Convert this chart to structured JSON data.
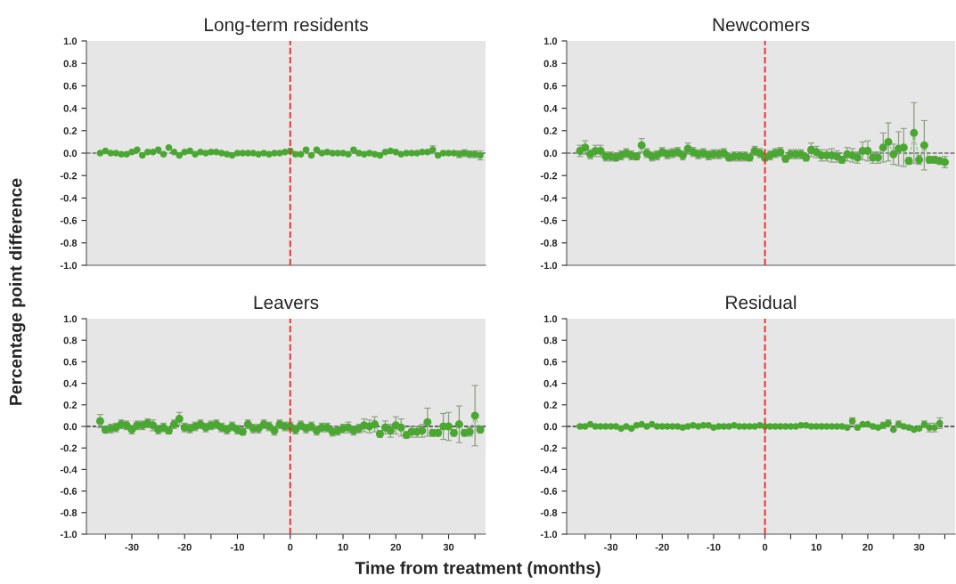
{
  "chart_data": [
    {
      "type": "scatter",
      "title": "Long-term residents",
      "ylabel": "Percentage point difference",
      "tick_labels": "y",
      "marker": "circle",
      "grid": false,
      "legend": false,
      "x": [
        -36,
        -35,
        -34,
        -33,
        -32,
        -31,
        -30,
        -29,
        -28,
        -27,
        -26,
        -25,
        -24,
        -23,
        -22,
        -21,
        -20,
        -19,
        -18,
        -17,
        -16,
        -15,
        -14,
        -13,
        -12,
        -11,
        -10,
        -9,
        -8,
        -7,
        -6,
        -5,
        -4,
        -3,
        -2,
        -1,
        0,
        1,
        2,
        3,
        4,
        5,
        6,
        7,
        8,
        9,
        10,
        11,
        12,
        13,
        14,
        15,
        16,
        17,
        18,
        19,
        20,
        21,
        22,
        23,
        24,
        25,
        26,
        27,
        28,
        29,
        30,
        31,
        32,
        33,
        34,
        35,
        36
      ],
      "xlim": [
        -38.6,
        37
      ],
      "ylim": [
        -1.0,
        1.0
      ],
      "yticks": [
        {
          "value": -1,
          "label": "-1.0"
        },
        {
          "value": -0.8,
          "label": "-0.8"
        },
        {
          "value": -0.6,
          "label": "-0.6"
        },
        {
          "value": -0.4,
          "label": "-0.4"
        },
        {
          "value": -0.2,
          "label": "-0.2"
        },
        {
          "value": 0,
          "label": "0.0"
        },
        {
          "value": 0.2,
          "label": "0.2"
        },
        {
          "value": 0.4,
          "label": "0.4"
        },
        {
          "value": 0.6,
          "label": "0.6"
        },
        {
          "value": 0.8,
          "label": "0.8"
        },
        {
          "value": 1,
          "label": "1.0"
        }
      ],
      "ref_lines": [
        {
          "axis": "x",
          "value": 0,
          "color": "#e8322e",
          "line_style": "dashed"
        },
        {
          "axis": "y",
          "value": 0,
          "color": "#333333",
          "line_style": "dashed"
        }
      ],
      "series": [
        {
          "color": "#4aa832",
          "values": [
            0.0,
            0.02,
            0.0,
            0.0,
            -0.01,
            -0.01,
            0.01,
            0.03,
            -0.02,
            0.01,
            0.01,
            0.03,
            -0.01,
            0.05,
            0.01,
            -0.02,
            0.01,
            0.02,
            -0.01,
            0.01,
            0.0,
            0.01,
            0.01,
            0.0,
            -0.01,
            -0.02,
            0.0,
            0.0,
            0.0,
            0.0,
            -0.01,
            0.0,
            -0.01,
            0.0,
            0.0,
            0.01,
            0.02,
            -0.01,
            -0.01,
            0.03,
            -0.02,
            0.03,
            0.0,
            0.01,
            0.0,
            0.0,
            0.0,
            -0.01,
            0.03,
            0.0,
            -0.01,
            0.0,
            -0.01,
            -0.02,
            0.01,
            0.02,
            0.01,
            -0.01,
            0.0,
            0.0,
            0.0,
            0.01,
            0.01,
            0.03,
            -0.02,
            0.0,
            0.0,
            0.0,
            -0.01,
            0.0,
            -0.01,
            -0.01,
            -0.02
          ],
          "errors": [
            null,
            null,
            null,
            null,
            null,
            null,
            null,
            null,
            null,
            null,
            null,
            null,
            null,
            null,
            null,
            null,
            null,
            null,
            null,
            null,
            null,
            null,
            null,
            null,
            null,
            null,
            null,
            null,
            null,
            null,
            null,
            null,
            null,
            null,
            null,
            null,
            null,
            null,
            null,
            null,
            null,
            null,
            null,
            null,
            null,
            null,
            null,
            null,
            null,
            null,
            null,
            null,
            null,
            null,
            null,
            null,
            null,
            null,
            null,
            null,
            null,
            null,
            null,
            0.035,
            null,
            null,
            null,
            null,
            0.03,
            0.03,
            0.03,
            0.03,
            0.04
          ]
        }
      ]
    },
    {
      "type": "line",
      "title": "Newcomers",
      "tick_labels": "y",
      "marker": "circle",
      "line_style": "dashed",
      "grid": false,
      "legend": false,
      "x": [
        -36,
        -35,
        -34,
        -33,
        -32,
        -31,
        -30,
        -29,
        -28,
        -27,
        -26,
        -25,
        -24,
        -23,
        -22,
        -21,
        -20,
        -19,
        -18,
        -17,
        -16,
        -15,
        -14,
        -13,
        -12,
        -11,
        -10,
        -9,
        -8,
        -7,
        -6,
        -5,
        -4,
        -3,
        -2,
        -1,
        0,
        1,
        2,
        3,
        4,
        5,
        6,
        7,
        8,
        9,
        10,
        11,
        12,
        13,
        14,
        15,
        16,
        17,
        18,
        19,
        20,
        21,
        22,
        23,
        24,
        25,
        26,
        27,
        28,
        29,
        30,
        31,
        32,
        33,
        34,
        35
      ],
      "xlim": [
        -38.6,
        37
      ],
      "ylim": [
        -1.0,
        1.0
      ],
      "yticks": [
        {
          "value": -1,
          "label": "-1.0"
        },
        {
          "value": -0.8,
          "label": "-0.8"
        },
        {
          "value": -0.6,
          "label": "-0.6"
        },
        {
          "value": -0.4,
          "label": "-0.4"
        },
        {
          "value": -0.2,
          "label": "-0.2"
        },
        {
          "value": 0,
          "label": "0.0"
        },
        {
          "value": 0.2,
          "label": "0.2"
        },
        {
          "value": 0.4,
          "label": "0.4"
        },
        {
          "value": 0.6,
          "label": "0.6"
        },
        {
          "value": 0.8,
          "label": "0.8"
        },
        {
          "value": 1,
          "label": "1.0"
        }
      ],
      "ref_lines": [
        {
          "axis": "x",
          "value": 0,
          "color": "#e8322e",
          "line_style": "dashed"
        },
        {
          "axis": "y",
          "value": 0,
          "color": "#333333",
          "line_style": "dashed"
        }
      ],
      "series": [
        {
          "color": "#4aa832",
          "values": [
            0.02,
            0.05,
            -0.01,
            0.02,
            0.02,
            -0.03,
            -0.03,
            -0.04,
            -0.02,
            0.0,
            -0.02,
            -0.03,
            0.07,
            0.0,
            -0.03,
            -0.02,
            0.01,
            -0.01,
            0.0,
            0.01,
            -0.02,
            0.04,
            0.01,
            -0.01,
            0.0,
            -0.02,
            -0.01,
            -0.01,
            0.0,
            -0.04,
            -0.03,
            -0.03,
            -0.03,
            -0.04,
            0.02,
            0.0,
            -0.04,
            -0.02,
            0.0,
            0.01,
            -0.05,
            -0.01,
            -0.01,
            -0.01,
            -0.04,
            0.03,
            0.01,
            -0.02,
            -0.02,
            -0.02,
            -0.03,
            -0.06,
            -0.01,
            -0.02,
            -0.04,
            0.02,
            0.02,
            -0.04,
            -0.04,
            0.05,
            0.1,
            -0.01,
            0.04,
            0.05,
            -0.07,
            0.18,
            -0.06,
            0.07,
            -0.06,
            -0.06,
            -0.07,
            -0.08
          ],
          "errors": [
            0.05,
            0.06,
            0.04,
            0.05,
            0.05,
            0.04,
            0.04,
            0.03,
            0.04,
            0.04,
            0.04,
            0.03,
            0.06,
            0.04,
            0.04,
            0.04,
            0.04,
            0.04,
            0.04,
            0.04,
            0.04,
            0.05,
            0.04,
            0.04,
            0.04,
            0.04,
            0.04,
            0.04,
            0.04,
            0.03,
            0.04,
            0.04,
            0.04,
            0.03,
            0.04,
            0.04,
            0.03,
            0.04,
            0.04,
            0.04,
            0.03,
            0.04,
            0.04,
            0.04,
            0.03,
            0.06,
            0.05,
            0.05,
            0.05,
            0.06,
            0.05,
            0.03,
            0.06,
            0.06,
            0.05,
            0.08,
            0.09,
            0.05,
            0.05,
            0.13,
            0.17,
            0.09,
            0.15,
            0.17,
            0.03,
            0.27,
            0.04,
            0.22,
            0.03,
            0.03,
            0.03,
            0.05
          ]
        }
      ]
    },
    {
      "type": "line",
      "title": "Leavers",
      "xlabel": "Time from treatment (months)",
      "marker": "circle",
      "line_style": "dashed",
      "grid": false,
      "legend": false,
      "x": [
        -36,
        -35,
        -34,
        -33,
        -32,
        -31,
        -30,
        -29,
        -28,
        -27,
        -26,
        -25,
        -24,
        -23,
        -22,
        -21,
        -20,
        -19,
        -18,
        -17,
        -16,
        -15,
        -14,
        -13,
        -12,
        -11,
        -10,
        -9,
        -8,
        -7,
        -6,
        -5,
        -4,
        -3,
        -2,
        -1,
        0,
        1,
        2,
        3,
        4,
        5,
        6,
        7,
        8,
        9,
        10,
        11,
        12,
        13,
        14,
        15,
        16,
        17,
        18,
        19,
        20,
        21,
        22,
        23,
        24,
        25,
        26,
        27,
        28,
        29,
        30,
        31,
        32,
        33,
        34,
        35,
        36
      ],
      "xlim": [
        -38.6,
        37
      ],
      "xticks": [
        {
          "value": -35,
          "label": null
        },
        -30,
        {
          "value": -25,
          "label": null
        },
        -20,
        {
          "value": -15,
          "label": null
        },
        -10,
        {
          "value": -5,
          "label": null
        },
        0,
        {
          "value": 5,
          "label": null
        },
        10,
        {
          "value": 15,
          "label": null
        },
        20,
        {
          "value": 25,
          "label": null
        },
        30,
        {
          "value": 35,
          "label": null
        }
      ],
      "ylim": [
        -1.0,
        1.0
      ],
      "yticks": [
        {
          "value": -1,
          "label": "-1.0"
        },
        {
          "value": -0.8,
          "label": "-0.8"
        },
        {
          "value": -0.6,
          "label": "-0.6"
        },
        {
          "value": -0.4,
          "label": "-0.4"
        },
        {
          "value": -0.2,
          "label": "-0.2"
        },
        {
          "value": 0,
          "label": "0.0"
        },
        {
          "value": 0.2,
          "label": "0.2"
        },
        {
          "value": 0.4,
          "label": "0.4"
        },
        {
          "value": 0.6,
          "label": "0.6"
        },
        {
          "value": 0.8,
          "label": "0.8"
        },
        {
          "value": 1,
          "label": "1.0"
        }
      ],
      "ref_lines": [
        {
          "axis": "x",
          "value": 0,
          "color": "#e8322e",
          "line_style": "dashed"
        },
        {
          "axis": "y",
          "value": 0,
          "color": "#333333",
          "line_style": "dashed"
        }
      ],
      "series": [
        {
          "color": "#4aa832",
          "values": [
            0.05,
            -0.03,
            -0.02,
            -0.01,
            0.02,
            0.01,
            -0.03,
            0.01,
            0.01,
            0.03,
            0.01,
            -0.03,
            -0.01,
            -0.04,
            0.02,
            0.07,
            -0.01,
            -0.02,
            0.0,
            0.02,
            -0.01,
            0.01,
            0.02,
            -0.01,
            -0.03,
            0.0,
            -0.03,
            -0.05,
            0.02,
            -0.02,
            -0.02,
            0.02,
            0.0,
            -0.04,
            0.02,
            0.0,
            0.0,
            -0.03,
            0.01,
            -0.02,
            0.0,
            -0.04,
            -0.01,
            -0.01,
            -0.05,
            -0.04,
            -0.02,
            -0.01,
            -0.04,
            -0.02,
            0.01,
            0.0,
            0.02,
            -0.07,
            -0.01,
            -0.04,
            0.01,
            -0.01,
            -0.08,
            -0.05,
            -0.05,
            -0.04,
            0.04,
            -0.06,
            -0.06,
            0.0,
            0.0,
            -0.06,
            0.02,
            -0.06,
            -0.05,
            0.1,
            -0.03
          ],
          "errors": [
            0.06,
            0.03,
            0.04,
            0.04,
            0.04,
            0.04,
            0.04,
            0.04,
            0.04,
            0.04,
            0.05,
            0.04,
            0.04,
            0.03,
            0.04,
            0.06,
            0.04,
            0.04,
            0.04,
            0.04,
            0.04,
            0.04,
            0.04,
            0.04,
            0.04,
            0.04,
            0.04,
            0.03,
            0.04,
            0.04,
            0.04,
            0.04,
            0.04,
            0.04,
            0.04,
            0.04,
            0.04,
            0.04,
            0.04,
            0.04,
            0.04,
            0.04,
            0.04,
            0.04,
            0.04,
            0.04,
            0.04,
            0.05,
            0.04,
            0.04,
            0.06,
            0.06,
            0.07,
            0.03,
            0.06,
            0.06,
            0.08,
            0.08,
            0.03,
            0.05,
            0.05,
            0.06,
            0.13,
            0.03,
            0.03,
            0.12,
            0.13,
            0.03,
            0.17,
            0.03,
            0.04,
            0.28,
            0.03
          ]
        }
      ]
    },
    {
      "type": "scatter",
      "title": "Residual",
      "marker": "circle",
      "grid": false,
      "legend": false,
      "x": [
        -36,
        -35,
        -34,
        -33,
        -32,
        -31,
        -30,
        -29,
        -28,
        -27,
        -26,
        -25,
        -24,
        -23,
        -22,
        -21,
        -20,
        -19,
        -18,
        -17,
        -16,
        -15,
        -14,
        -13,
        -12,
        -11,
        -10,
        -9,
        -8,
        -7,
        -6,
        -5,
        -4,
        -3,
        -2,
        -1,
        0,
        1,
        2,
        3,
        4,
        5,
        6,
        7,
        8,
        9,
        10,
        11,
        12,
        13,
        14,
        15,
        16,
        17,
        18,
        19,
        20,
        21,
        22,
        23,
        24,
        25,
        26,
        27,
        28,
        29,
        30,
        31,
        32,
        33,
        34
      ],
      "xlim": [
        -38.6,
        37
      ],
      "xticks": [
        {
          "value": -35,
          "label": null
        },
        -30,
        {
          "value": -25,
          "label": null
        },
        -20,
        {
          "value": -15,
          "label": null
        },
        -10,
        {
          "value": -5,
          "label": null
        },
        0,
        {
          "value": 5,
          "label": null
        },
        10,
        {
          "value": 15,
          "label": null
        },
        20,
        {
          "value": 25,
          "label": null
        },
        30,
        {
          "value": 35,
          "label": null
        }
      ],
      "ylim": [
        -1.0,
        1.0
      ],
      "yticks": [
        {
          "value": -1,
          "label": "-1.0"
        },
        {
          "value": -0.8,
          "label": "-0.8"
        },
        {
          "value": -0.6,
          "label": "-0.6"
        },
        {
          "value": -0.4,
          "label": "-0.4"
        },
        {
          "value": -0.2,
          "label": "-0.2"
        },
        {
          "value": 0,
          "label": "0.0"
        },
        {
          "value": 0.2,
          "label": "0.2"
        },
        {
          "value": 0.4,
          "label": "0.4"
        },
        {
          "value": 0.6,
          "label": "0.6"
        },
        {
          "value": 0.8,
          "label": "0.8"
        },
        {
          "value": 1,
          "label": "1.0"
        }
      ],
      "ref_lines": [
        {
          "axis": "x",
          "value": 0,
          "color": "#e8322e",
          "line_style": "dashed"
        },
        {
          "axis": "y",
          "value": 0,
          "color": "#333333",
          "line_style": "dashed"
        }
      ],
      "series": [
        {
          "color": "#4aa832",
          "values": [
            0.0,
            0.0,
            0.02,
            0.0,
            0.0,
            0.0,
            0.0,
            0.0,
            -0.02,
            0.0,
            -0.02,
            0.01,
            0.02,
            0.0,
            0.02,
            0.0,
            0.0,
            0.0,
            0.0,
            0.0,
            -0.01,
            0.0,
            0.01,
            0.0,
            0.01,
            0.01,
            -0.01,
            0.0,
            0.0,
            0.0,
            0.01,
            0.0,
            0.0,
            0.0,
            0.0,
            0.01,
            0.0,
            0.0,
            0.0,
            0.0,
            0.0,
            0.0,
            0.0,
            0.01,
            0.01,
            0.0,
            0.0,
            0.0,
            0.0,
            0.0,
            0.0,
            0.0,
            -0.01,
            0.05,
            -0.01,
            0.02,
            0.02,
            0.0,
            -0.01,
            0.01,
            0.03,
            -0.03,
            0.02,
            0.0,
            -0.01,
            -0.03,
            -0.02,
            0.02,
            -0.01,
            -0.01,
            0.03
          ],
          "errors": [
            null,
            null,
            null,
            null,
            null,
            null,
            null,
            null,
            null,
            null,
            null,
            null,
            null,
            null,
            null,
            null,
            null,
            null,
            null,
            null,
            null,
            null,
            null,
            null,
            null,
            null,
            null,
            null,
            null,
            null,
            null,
            null,
            null,
            null,
            null,
            null,
            null,
            null,
            null,
            null,
            null,
            null,
            null,
            null,
            null,
            null,
            null,
            null,
            null,
            null,
            null,
            null,
            null,
            0.03,
            null,
            null,
            null,
            null,
            null,
            0.03,
            0.03,
            null,
            0.03,
            null,
            null,
            null,
            null,
            0.03,
            0.04,
            0.04,
            0.05
          ]
        }
      ]
    }
  ]
}
